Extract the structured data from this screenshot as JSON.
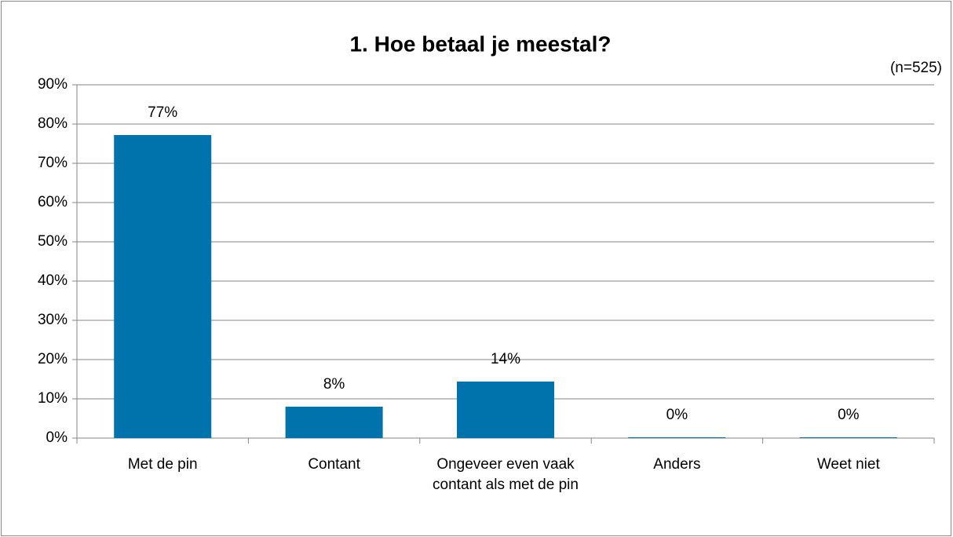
{
  "chart_data": {
    "type": "bar",
    "title": "1. Hoe betaal je meestal?",
    "subtitle": "(n=525)",
    "categories": [
      "Met de pin",
      "Contant",
      "Ongeveer even vaak contant als met de pin",
      "Anders",
      "Weet niet"
    ],
    "values": [
      77.2,
      8.0,
      14.4,
      0.2,
      0.2
    ],
    "value_labels": [
      "77%",
      "8%",
      "14%",
      "0%",
      "0%"
    ],
    "color": "#0073ad",
    "ylim": [
      0,
      90
    ],
    "yticks": [
      {
        "value": 0,
        "label": "0%"
      },
      {
        "value": 10,
        "label": "10%"
      },
      {
        "value": 20,
        "label": "20%"
      },
      {
        "value": 30,
        "label": "30%"
      },
      {
        "value": 40,
        "label": "40%"
      },
      {
        "value": 50,
        "label": "50%"
      },
      {
        "value": 60,
        "label": "60%"
      },
      {
        "value": 70,
        "label": "70%"
      },
      {
        "value": 80,
        "label": "80%"
      },
      {
        "value": 90,
        "label": "90%"
      }
    ],
    "grid": true
  }
}
